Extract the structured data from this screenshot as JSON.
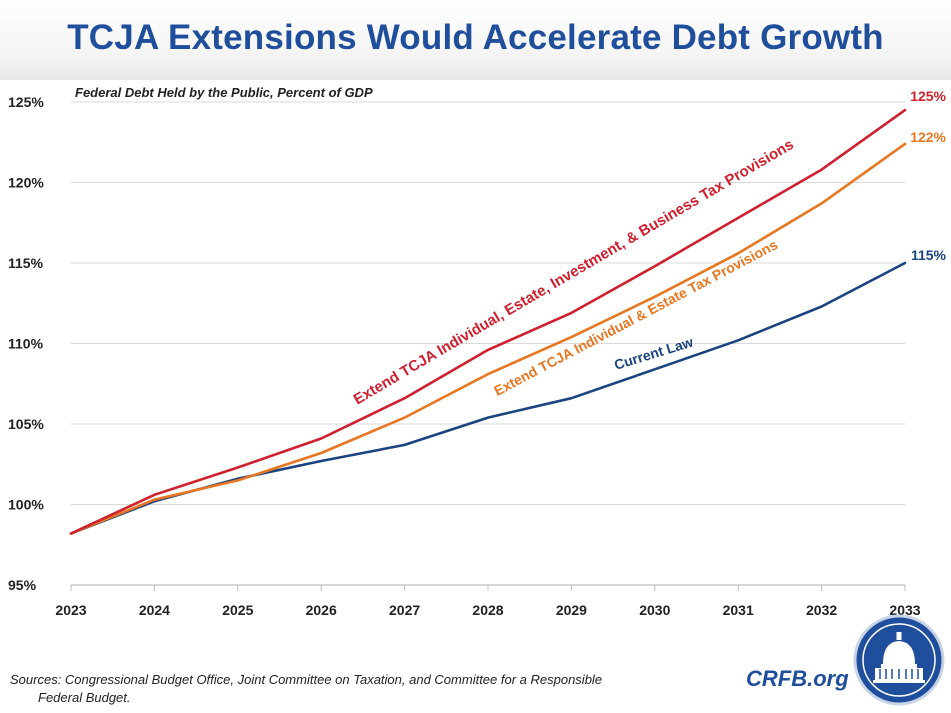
{
  "title": "TCJA Extensions Would Accelerate Debt Growth",
  "source_line1": "Sources: Congressional Budget Office, Joint Committee on Taxation, and Committee for a Responsible",
  "source_line2": "Federal Budget.",
  "brand": "CRFB.org",
  "colors": {
    "title": "#1f4e9c",
    "grid": "#d9d9d9"
  },
  "chart_data": {
    "type": "line",
    "subtitle": "Federal Debt Held by the Public, Percent of GDP",
    "x": [
      2023,
      2024,
      2025,
      2026,
      2027,
      2028,
      2029,
      2030,
      2031,
      2032,
      2033
    ],
    "x_tick_labels": [
      "2023",
      "2024",
      "2025",
      "2026",
      "2027",
      "2028",
      "2029",
      "2030",
      "2031",
      "2032",
      "2033"
    ],
    "ylim": [
      95,
      125
    ],
    "y_ticks": [
      95,
      100,
      105,
      110,
      115,
      120,
      125
    ],
    "y_tick_labels": [
      "95%",
      "100%",
      "105%",
      "110%",
      "115%",
      "120%",
      "125%"
    ],
    "grid": true,
    "series": [
      {
        "name": "Extend TCJA Individual, Estate, Investment, & Business Tax Provisions",
        "color": "#d0202e",
        "end_label": "125%",
        "values": [
          98.2,
          100.6,
          102.3,
          104.1,
          106.6,
          109.6,
          111.9,
          114.8,
          117.8,
          120.8,
          124.5
        ]
      },
      {
        "name": "Extend TCJA Individual & Estate Tax Provisions",
        "color": "#e87722",
        "end_label": "122%",
        "values": [
          98.2,
          100.3,
          101.5,
          103.2,
          105.4,
          108.1,
          110.4,
          112.9,
          115.6,
          118.7,
          122.4
        ]
      },
      {
        "name": "Current Law",
        "color": "#1a4480",
        "end_label": "115%",
        "values": [
          98.2,
          100.2,
          101.6,
          102.7,
          103.7,
          105.4,
          106.6,
          108.4,
          110.2,
          112.3,
          115.0
        ]
      }
    ]
  }
}
